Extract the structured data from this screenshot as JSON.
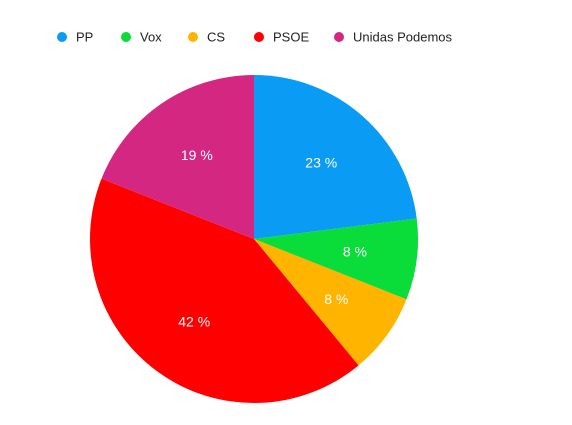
{
  "chart_data": {
    "type": "pie",
    "title": "",
    "legend_position": "top-left",
    "slices": [
      {
        "name": "PP",
        "value": 23,
        "label": "23 %",
        "color": "#0a9cf5"
      },
      {
        "name": "Vox",
        "value": 8,
        "label": "8 %",
        "color": "#0adc3a"
      },
      {
        "name": "CS",
        "value": 8,
        "label": "8 %",
        "color": "#ffb400"
      },
      {
        "name": "PSOE",
        "value": 42,
        "label": "42 %",
        "color": "#ff0000"
      },
      {
        "name": "Unidas Podemos",
        "value": 19,
        "label": "19 %",
        "color": "#d42782"
      }
    ]
  }
}
